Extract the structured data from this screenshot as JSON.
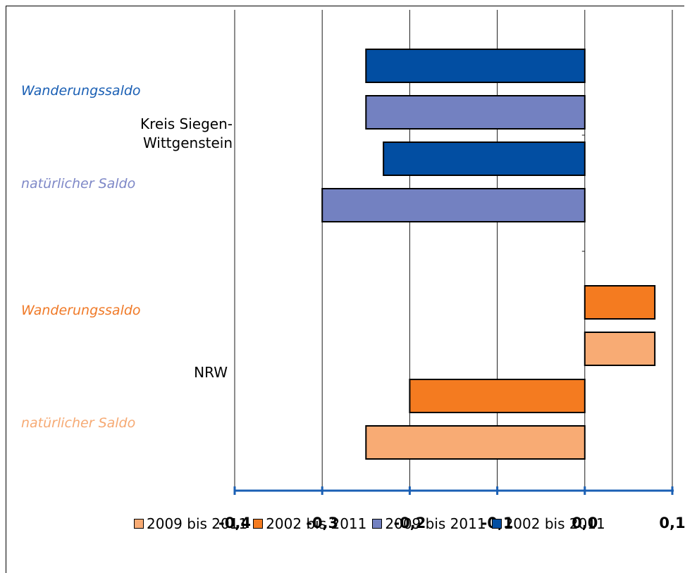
{
  "chart_data": {
    "type": "bar",
    "orientation": "horizontal",
    "xlim": [
      -0.4,
      0.1
    ],
    "x_ticks": [
      "-0,4",
      "-0,3",
      "-0,2",
      "-0,1",
      "0,0",
      "0,1"
    ],
    "grid": true,
    "legend_position": "bottom",
    "groups": [
      {
        "name_lines": [
          "Kreis Siegen-",
          "Wittgenstein"
        ],
        "side_labels": [
          {
            "text": "Wanderungssaldo",
            "color": "#1a5fb4"
          },
          {
            "text": "natürlicher Saldo",
            "color": "#7e88c7"
          }
        ],
        "bars": [
          {
            "series": "2002 bis 2011",
            "value": -0.25,
            "color": "#024ea2"
          },
          {
            "series": "2009 bis 2011",
            "value": -0.25,
            "color": "#7381c1"
          },
          {
            "series": "2002 bis 2011",
            "value": -0.23,
            "color": "#024ea2"
          },
          {
            "series": "2009 bis 2011",
            "value": -0.3,
            "color": "#7381c1"
          }
        ]
      },
      {
        "name_lines": [
          "NRW"
        ],
        "side_labels": [
          {
            "text": "Wanderungssaldo",
            "color": "#f07a28"
          },
          {
            "text": "natürlicher Saldo",
            "color": "#f6aa74"
          }
        ],
        "bars": [
          {
            "series": "2002 bis 2011",
            "value": 0.08,
            "color": "#f47b20"
          },
          {
            "series": "2009 bis 2011",
            "value": 0.08,
            "color": "#f8ab74"
          },
          {
            "series": "2002 bis 2011",
            "value": -0.2,
            "color": "#f47b20"
          },
          {
            "series": "2009 bis 2011",
            "value": -0.25,
            "color": "#f8ab74"
          }
        ]
      }
    ],
    "legend": [
      {
        "label": "2009 bis 2011",
        "color": "#f8ab74"
      },
      {
        "label": "2002 bis 2011",
        "color": "#f47b20"
      },
      {
        "label": "2009 bis 2011",
        "color": "#7381c1"
      },
      {
        "label": "2002 bis 2011",
        "color": "#024ea2"
      }
    ],
    "axis_color": "#1a5fb4"
  }
}
